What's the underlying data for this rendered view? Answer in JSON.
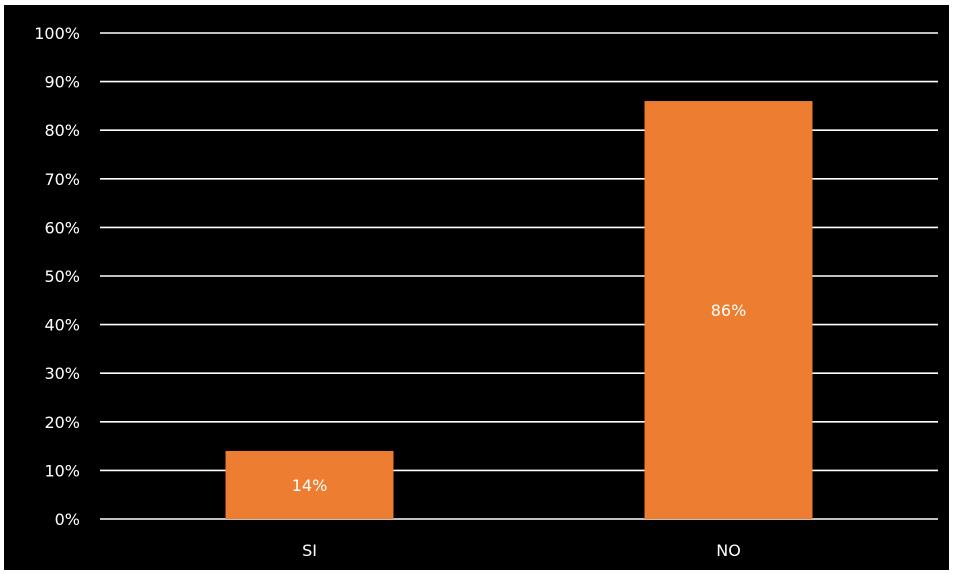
{
  "chart_data": {
    "type": "bar",
    "categories": [
      "SI",
      "NO"
    ],
    "values": [
      14,
      86
    ],
    "value_labels": [
      "14%",
      "86%"
    ],
    "y_ticks": [
      "0%",
      "10%",
      "20%",
      "30%",
      "40%",
      "50%",
      "60%",
      "70%",
      "80%",
      "90%",
      "100%"
    ],
    "ylim": [
      0,
      100
    ],
    "grid": true,
    "legend": "none",
    "colors": {
      "background": "#000000",
      "bar": "#ed7d31",
      "gridline": "#ffffff",
      "text": "#ffffff"
    }
  }
}
